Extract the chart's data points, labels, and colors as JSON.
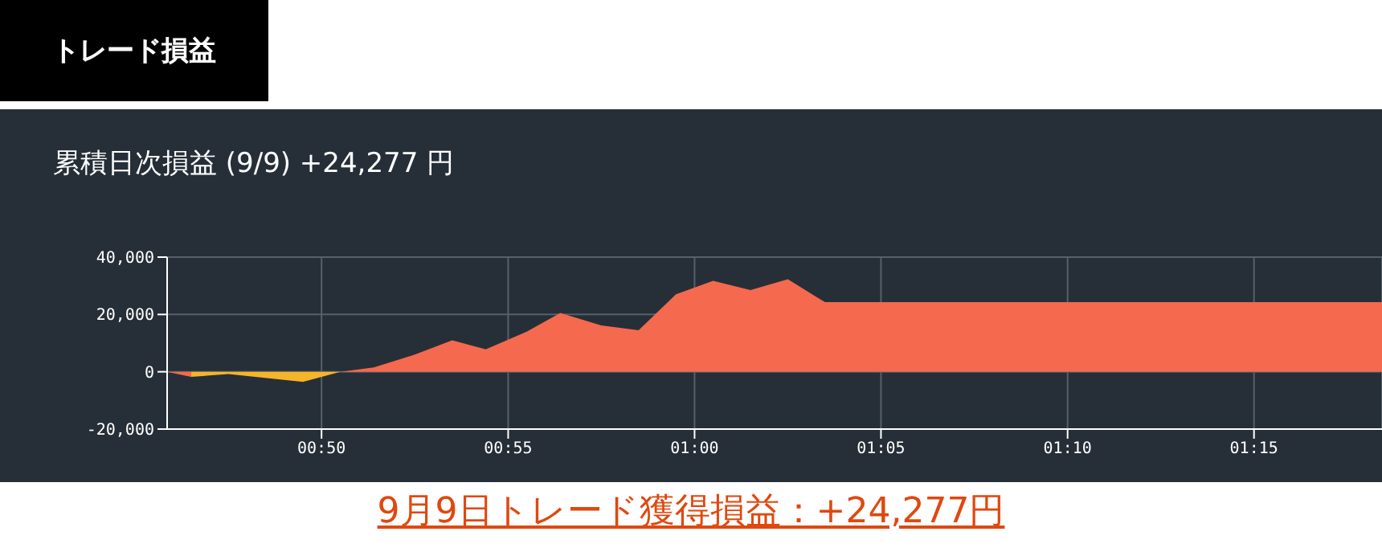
{
  "chart_data": {
    "type": "area",
    "title": "トレード損益",
    "subtitle": "累積日次損益 (9/9) +24,277 円",
    "annotations": [
      "9月9日トレード獲得損益：+24,277円"
    ],
    "x": [
      0.7643,
      0.775,
      0.7917,
      0.825,
      0.8417,
      0.8567,
      0.875,
      0.8917,
      0.9067,
      0.925,
      0.94,
      0.9583,
      0.975,
      0.9917,
      1.0083,
      1.025,
      1.0417,
      1.0583,
      1.3072
    ],
    "series": [
      {
        "colors": [
          "#f5694e",
          "#f6b42a",
          "#f6b42a",
          "#f6b42a",
          "#f5694e",
          "#f5694e",
          "#f5694e",
          "#f5694e",
          "#f5694e",
          "#f5694e",
          "#f5694e",
          "#f5694e",
          "#f5694e",
          "#f5694e",
          "#f5694e",
          "#f5694e",
          "#f5694e",
          "#f5694e",
          "#f5694e"
        ],
        "values": [
          0,
          -1800,
          -800,
          -3500,
          0,
          1500,
          6000,
          11000,
          7800,
          14000,
          20500,
          16200,
          14500,
          27000,
          31700,
          28500,
          32300,
          24277,
          24277
        ]
      }
    ],
    "xlim": [
      0.7643,
      1.3072
    ],
    "xticks": [
      {
        "value": 0.8333,
        "label": "00:50"
      },
      {
        "value": 0.9167,
        "label": "00:55"
      },
      {
        "value": 1,
        "label": "01:00"
      },
      {
        "value": 1.0833,
        "label": "01:05"
      },
      {
        "value": 1.1667,
        "label": "01:10"
      },
      {
        "value": 1.25,
        "label": "01:15"
      }
    ],
    "ylim": [
      -20000,
      40000
    ],
    "yticks": [
      {
        "value": -20000,
        "label": "-20,000"
      },
      {
        "value": 0,
        "label": "0"
      },
      {
        "value": 20000,
        "label": "20,000"
      },
      {
        "value": 40000,
        "label": "40,000"
      }
    ],
    "grid": true
  }
}
